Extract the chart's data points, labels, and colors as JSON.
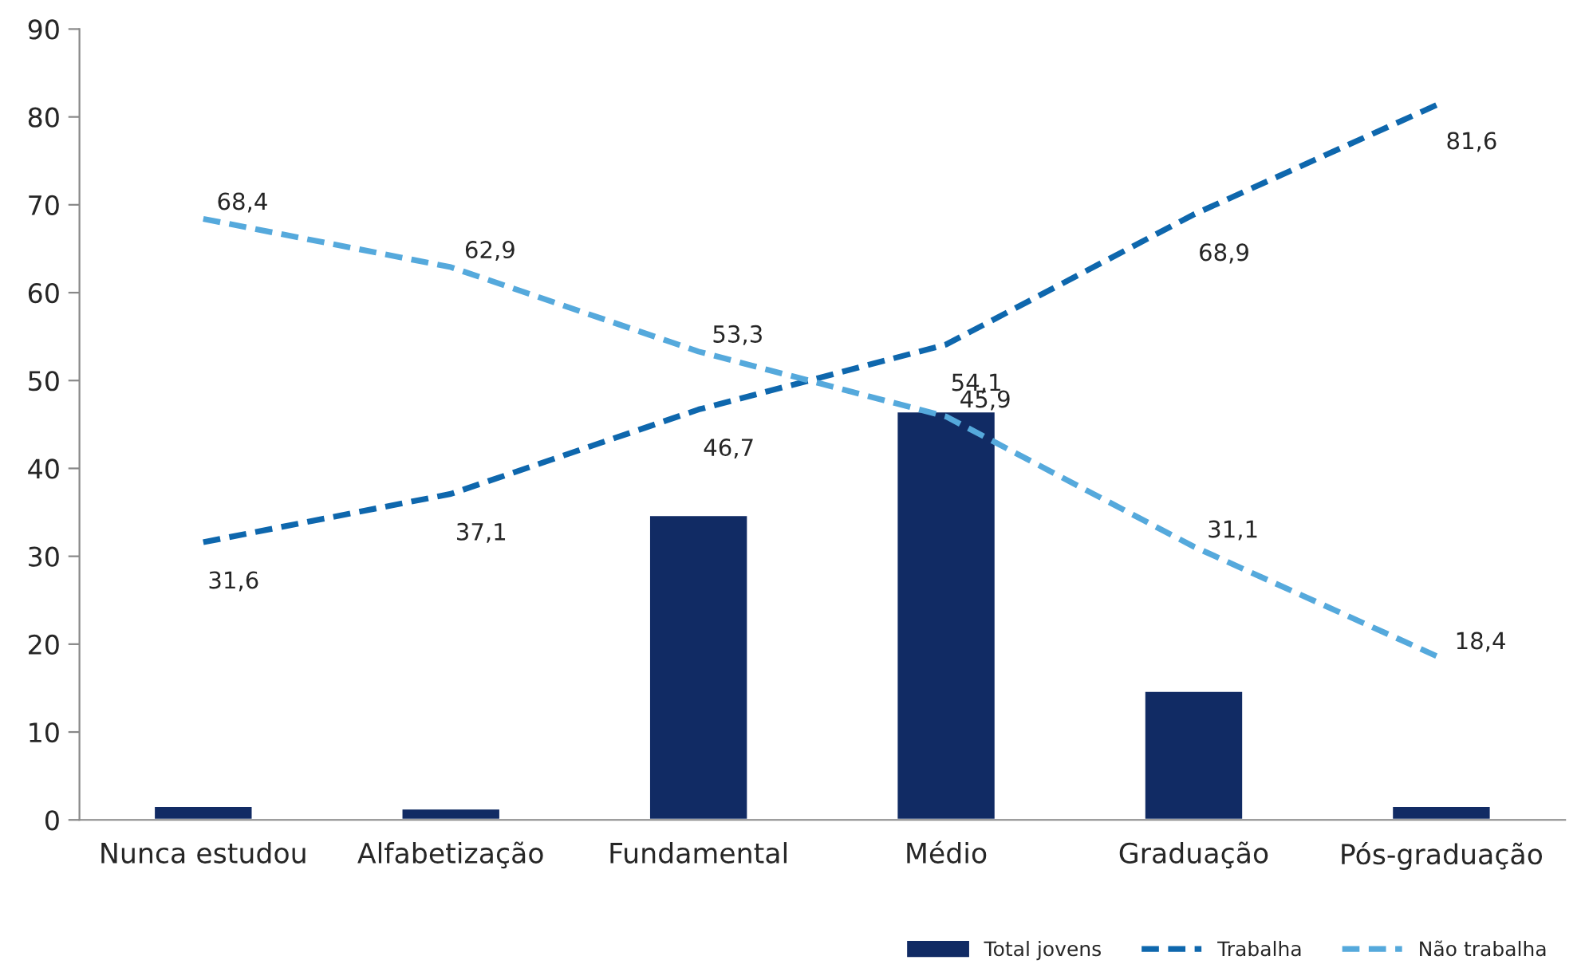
{
  "chart_data": {
    "type": "bar",
    "categories": [
      "Nunca estudou",
      "Alfabetização",
      "Fundamental",
      "Médio",
      "Graduação",
      "Pós-graduação"
    ],
    "series": [
      {
        "name": "Total jovens",
        "color": "#112b64",
        "values": [
          1.6,
          1.3,
          34.7,
          46.5,
          14.7,
          1.6
        ]
      },
      {
        "name": "Trabalha",
        "type": "line",
        "color": "#0e67ad",
        "line_style": "dashed",
        "values": [
          31.6,
          37.1,
          46.7,
          54.1,
          68.9,
          81.6
        ],
        "value_labels": [
          "31,6",
          "37,1",
          "46,7",
          "54,1",
          "68,9",
          "81,6"
        ]
      },
      {
        "name": "Não trabalha",
        "type": "line",
        "color": "#55a9dc",
        "line_style": "dashed",
        "values": [
          68.4,
          62.9,
          53.3,
          45.9,
          31.1,
          18.4
        ],
        "value_labels": [
          "68,4",
          "62,9",
          "53,3",
          "45,9",
          "31,1",
          "18,4"
        ]
      }
    ],
    "ylim": [
      0,
      90
    ],
    "yticks": [
      0,
      10,
      20,
      30,
      40,
      50,
      60,
      70,
      80,
      90
    ],
    "grid": false,
    "legend": "bottom right"
  }
}
